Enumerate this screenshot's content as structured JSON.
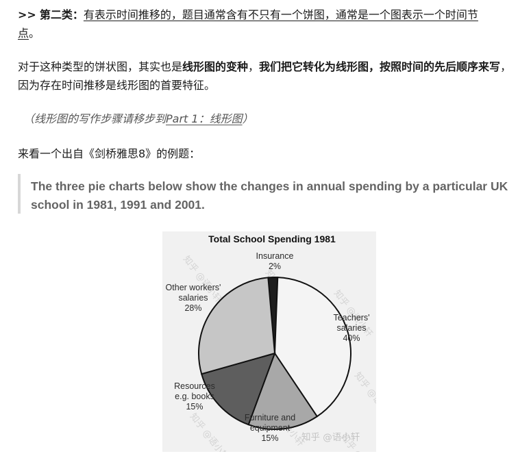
{
  "section": {
    "prefix": ">>",
    "heading": "第二类：",
    "underlined_text_1": "有表示时间推移的，题目通常含有不只有一个饼图，通常是一个图表示一个时间节",
    "underlined_text_2": "点",
    "end_punct": "。"
  },
  "para2": {
    "part1": "对于这种类型的饼状图，其实也是",
    "bold1": "线形图的变种",
    "part2": "，",
    "bold2": "我们把它转化为线形图，按照时间的先后顺序来写",
    "part3": "，因为存在时间推移是线形图的首要特征。"
  },
  "note": {
    "open": "（线形图的写作步骤请移步到",
    "link": "Part 1：线形图",
    "close": "）"
  },
  "intro": "来看一个出自《剑桥雅思8》的例题：",
  "quote": "The three pie charts below show the changes in annual spending by a particular UK school in 1981, 1991 and 2001.",
  "chart_data": {
    "type": "pie",
    "title": "Total School Spending 1981",
    "slices": [
      {
        "name": "Insurance",
        "value": 2,
        "label_lines": [
          "Insurance",
          "2%"
        ],
        "color": "#1e1e1e"
      },
      {
        "name": "Teachers' salaries",
        "value": 40,
        "label_lines": [
          "Teachers'",
          "salaries",
          "40%"
        ],
        "color": "#f4f4f4"
      },
      {
        "name": "Furniture and equipment",
        "value": 15,
        "label_lines": [
          "Furniture and",
          "equipment",
          "15%"
        ],
        "color": "#a8a8a8"
      },
      {
        "name": "Resources e.g. books",
        "value": 15,
        "label_lines": [
          "Resources",
          "e.g. books",
          "15%"
        ],
        "color": "#5e5e5e"
      },
      {
        "name": "Other workers' salaries",
        "value": 28,
        "label_lines": [
          "Other workers'",
          "salaries",
          "28%"
        ],
        "color": "#c6c6c6"
      }
    ]
  },
  "watermark": "知乎 @语小轩"
}
